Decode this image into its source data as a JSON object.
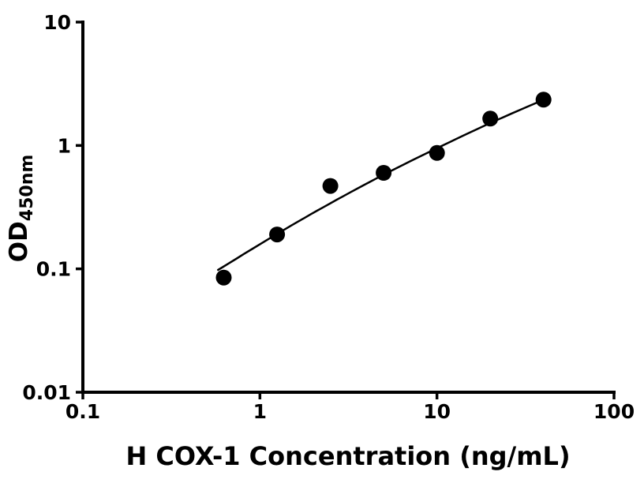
{
  "figure": {
    "background": "#ffffff"
  },
  "chart_data": {
    "type": "scatter",
    "title": "",
    "xlabel": "H COX-1 Concentration (ng/mL)",
    "ylabel_main": "OD",
    "ylabel_sub": "450nm",
    "x_scale": "log",
    "y_scale": "log",
    "xlim": [
      0.1,
      100
    ],
    "ylim": [
      0.01,
      10
    ],
    "grid": false,
    "legend": "none",
    "axis_color": "#000000",
    "background_color": "#ffffff",
    "x_ticks": [
      {
        "value": 0.1,
        "label": "0.1"
      },
      {
        "value": 1,
        "label": "1"
      },
      {
        "value": 10,
        "label": "10"
      },
      {
        "value": 100,
        "label": "100"
      }
    ],
    "y_ticks": [
      {
        "value": 0.01,
        "label": "0.01"
      },
      {
        "value": 0.1,
        "label": "0.1"
      },
      {
        "value": 1,
        "label": "1"
      },
      {
        "value": 10,
        "label": "10"
      }
    ],
    "series": [
      {
        "name": "standards",
        "type": "scatter",
        "marker": "circle",
        "marker_color": "#000000",
        "marker_radius": 10,
        "x": [
          0.625,
          1.25,
          2.5,
          5,
          10,
          20,
          40
        ],
        "y": [
          0.085,
          0.19,
          0.47,
          0.6,
          0.87,
          1.65,
          2.35
        ]
      },
      {
        "name": "fitted-curve",
        "type": "line",
        "line_color": "#000000",
        "line_width": 2.5,
        "x": [
          0.58,
          1.25,
          2.5,
          5,
          10,
          20,
          40
        ],
        "y": [
          0.098,
          0.192,
          0.34,
          0.58,
          0.95,
          1.52,
          2.35
        ]
      }
    ]
  }
}
